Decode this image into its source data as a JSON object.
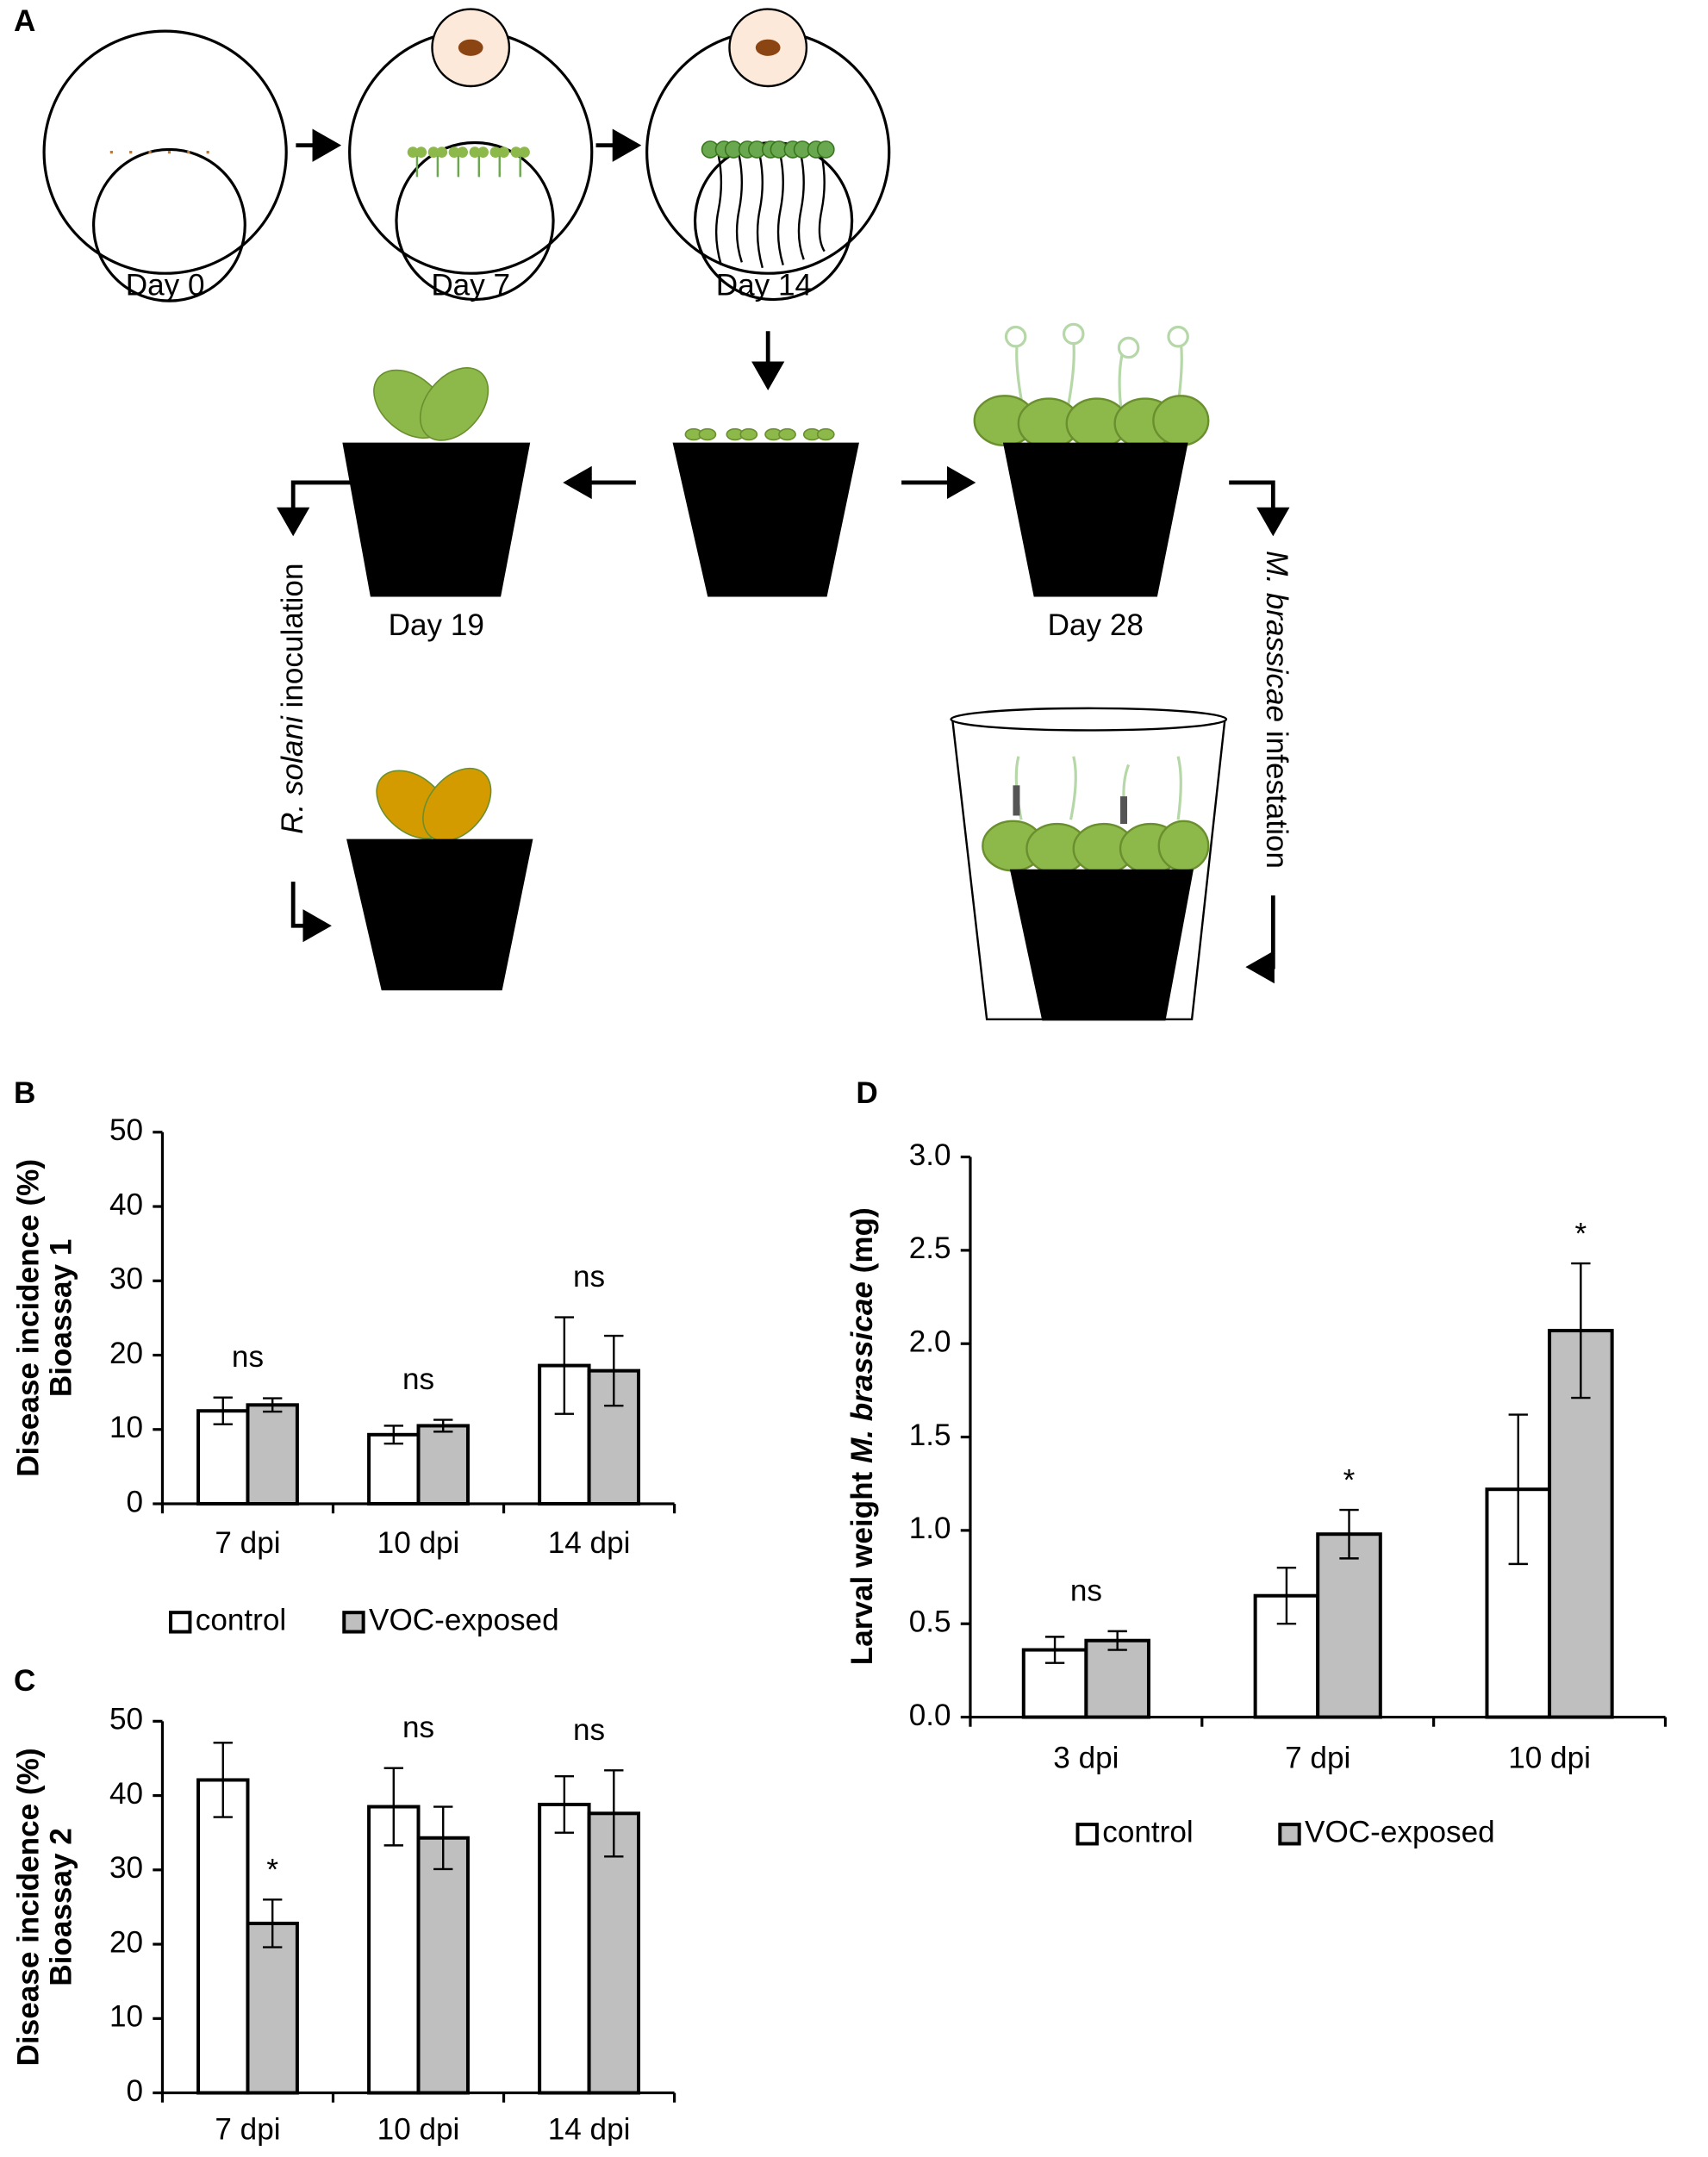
{
  "diagram": {
    "panel": "A",
    "days": [
      "Day 0",
      "Day 7",
      "Day 14",
      "Day 19",
      "Day 28"
    ],
    "inoculation": [
      "R. solani",
      " inoculation"
    ],
    "infestation": [
      "M. brassicae",
      " infestation"
    ]
  },
  "chart_data": [
    {
      "type": "bar",
      "panel": "B",
      "y_label": [
        "Disease incidence (%)",
        "Bioassay 1"
      ],
      "categories": [
        "7 dpi",
        "10 dpi",
        "14 dpi"
      ],
      "series": [
        {
          "name": "control",
          "color": "#ffffff",
          "values": [
            12.5,
            9.3,
            18.6
          ],
          "errors": [
            1.8,
            1.2,
            6.5
          ]
        },
        {
          "name": "VOC-exposed",
          "color": "#bfbfbf",
          "values": [
            13.3,
            10.5,
            17.9
          ],
          "errors": [
            0.9,
            0.8,
            4.7
          ]
        }
      ],
      "annotations": [
        "ns",
        "ns",
        "ns"
      ],
      "ylim": [
        0,
        50
      ],
      "yticks": [
        0,
        10,
        20,
        30,
        40,
        50
      ]
    },
    {
      "type": "bar",
      "panel": "C",
      "y_label": [
        "Disease incidence (%)",
        "Bioassay 2"
      ],
      "categories": [
        "7 dpi",
        "10 dpi",
        "14 dpi"
      ],
      "series": [
        {
          "color": "#ffffff",
          "values": [
            42.1,
            38.5,
            38.8
          ],
          "errors": [
            5.0,
            5.2,
            3.8
          ]
        },
        {
          "color": "#bfbfbf",
          "values": [
            22.8,
            34.3,
            37.6
          ],
          "errors": [
            3.2,
            4.2,
            5.8
          ]
        }
      ],
      "annotations": [
        "*",
        "ns",
        "ns"
      ],
      "ylim": [
        0,
        50
      ],
      "yticks": [
        0,
        10,
        20,
        30,
        40,
        50
      ]
    },
    {
      "type": "bar",
      "panel": "D",
      "y_label": [
        [
          "Larval weight ",
          "M. brassicae",
          " (mg)"
        ]
      ],
      "categories": [
        "3 dpi",
        "7 dpi",
        "10 dpi"
      ],
      "series": [
        {
          "name": "control",
          "color": "#ffffff",
          "values": [
            0.36,
            0.65,
            1.22
          ],
          "errors": [
            0.07,
            0.15,
            0.4
          ]
        },
        {
          "name": "VOC-exposed",
          "color": "#bfbfbf",
          "values": [
            0.41,
            0.98,
            2.07
          ],
          "errors": [
            0.05,
            0.13,
            0.36
          ]
        }
      ],
      "annotations": [
        "ns",
        "*",
        "*"
      ],
      "ylim": [
        0,
        3
      ],
      "yticks": [
        {
          "value": 0,
          "label": "0.0"
        },
        0.5,
        {
          "value": 1,
          "label": "1.0"
        },
        1.5,
        {
          "value": 2,
          "label": "2.0"
        },
        2.5,
        {
          "value": 3,
          "label": "3.0"
        }
      ]
    }
  ]
}
